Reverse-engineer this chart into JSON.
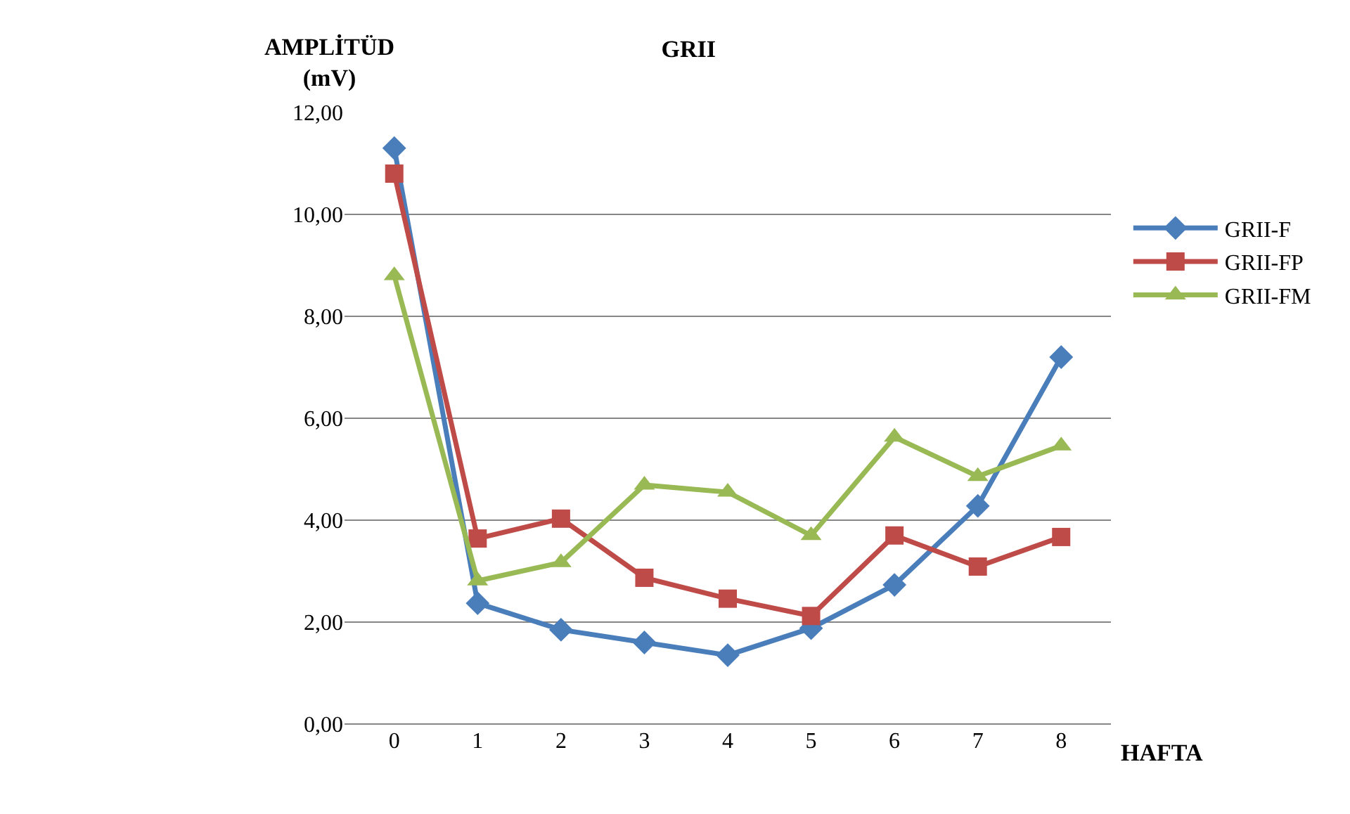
{
  "chart_data": {
    "type": "line",
    "title": "GRII",
    "ylabel": "AMPLİTÜD\n(mV)",
    "xlabel": "HAFTA",
    "categories": [
      "0",
      "1",
      "2",
      "3",
      "4",
      "5",
      "6",
      "7",
      "8"
    ],
    "ylim": [
      0,
      12
    ],
    "yticks": [
      {
        "value": 0,
        "label": "0,00"
      },
      {
        "value": 2,
        "label": "2,00"
      },
      {
        "value": 4,
        "label": "4,00"
      },
      {
        "value": 6,
        "label": "6,00"
      },
      {
        "value": 8,
        "label": "8,00"
      },
      {
        "value": 10,
        "label": "10,00"
      },
      {
        "value": 12,
        "label": "12,00"
      }
    ],
    "grid": "y",
    "legend": "right",
    "line_style": "solid",
    "series": [
      {
        "name": "GRII-F",
        "color": "#4a7ebb",
        "marker": "diamond",
        "values": [
          11.3,
          2.37,
          1.85,
          1.6,
          1.35,
          1.88,
          2.73,
          4.28,
          7.2
        ]
      },
      {
        "name": "GRII-FP",
        "color": "#be4b48",
        "marker": "square",
        "values": [
          10.8,
          3.64,
          4.03,
          2.87,
          2.46,
          2.12,
          3.7,
          3.09,
          3.67
        ]
      },
      {
        "name": "GRII-FM",
        "color": "#98b954",
        "marker": "triangle",
        "values": [
          8.8,
          2.81,
          3.17,
          4.69,
          4.55,
          3.7,
          5.63,
          4.86,
          5.46
        ]
      }
    ]
  }
}
